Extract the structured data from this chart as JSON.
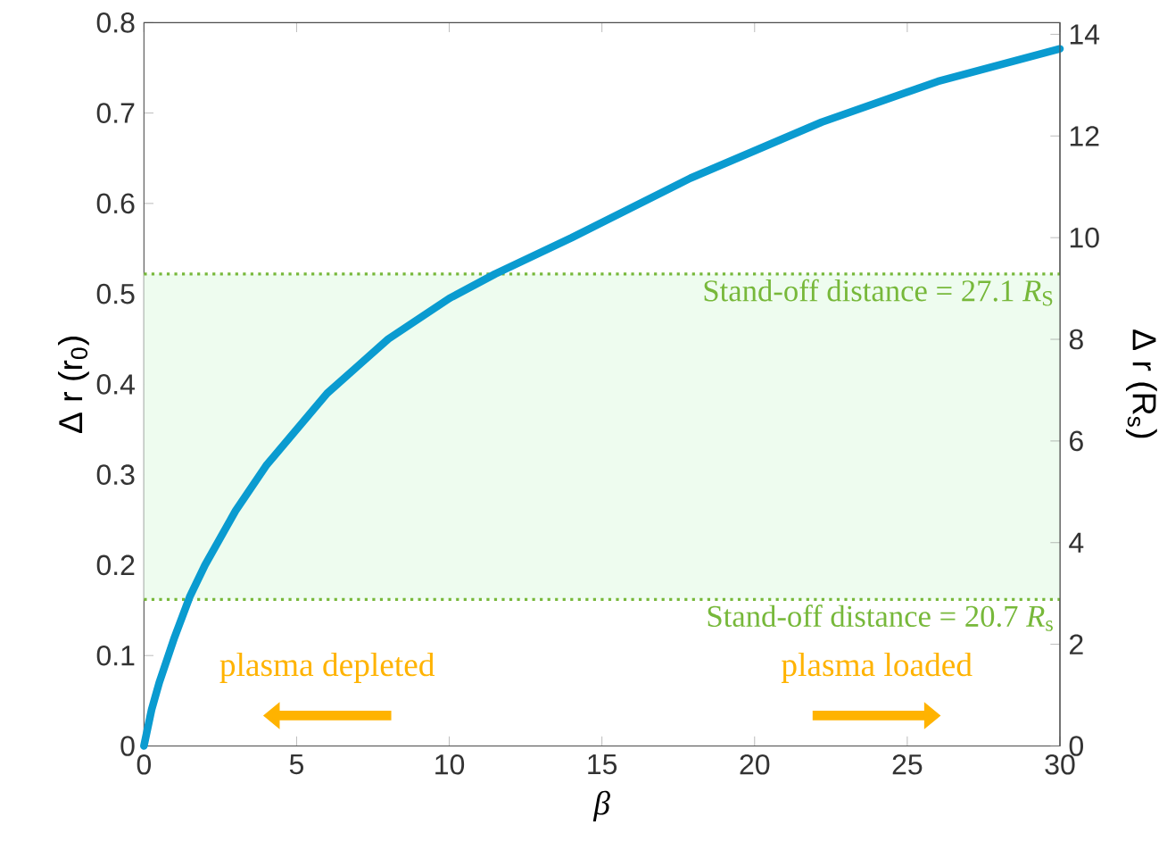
{
  "chart_data": {
    "type": "line",
    "xlabel": "β",
    "ylabel": "Δ r (r$_{0}$)",
    "y2label": "Δ r (R$_{s}$)",
    "xlim": [
      0,
      30
    ],
    "xticks": [
      0,
      5,
      10,
      15,
      20,
      25,
      30
    ],
    "ylim": [
      0,
      0.8
    ],
    "yticks": [
      0,
      0.1,
      0.2,
      0.3,
      0.4,
      0.5,
      0.6,
      0.7,
      0.8
    ],
    "y2lim": [
      0,
      14.23
    ],
    "y2ticks": [
      0,
      2,
      4,
      6,
      8,
      10,
      12,
      14
    ],
    "series": [
      {
        "color": "#0a9bd0",
        "x": [
          0,
          0.25,
          0.5,
          1,
          1.5,
          2,
          3,
          4,
          5,
          6,
          7,
          8,
          10,
          11.5,
          14,
          17.9,
          22.2,
          26,
          30
        ],
        "values": [
          0,
          0.04,
          0.07,
          0.12,
          0.165,
          0.2,
          0.26,
          0.31,
          0.35,
          0.39,
          0.42,
          0.45,
          0.495,
          0.522,
          0.562,
          0.628,
          0.69,
          0.735,
          0.771
        ]
      }
    ],
    "ref_lines": [
      {
        "axis": "y",
        "value": 0.522,
        "color": "#77b83a",
        "line_style": "dotted"
      },
      {
        "axis": "y",
        "value": 0.162,
        "color": "#77b83a",
        "line_style": "dotted"
      }
    ],
    "bands": [
      {
        "axis": "y",
        "from": 0.162,
        "to": 0.522,
        "color": "#eefcef"
      }
    ],
    "annotations": [
      "plasma depleted",
      "plasma loaded",
      {
        "text": "Stand-off distance = 27.1 *R*$_{S}$",
        "x": 30,
        "y": 0.522
      },
      {
        "text": "Stand-off distance = 20.7 *R*$_{s}$",
        "x": 30,
        "y": 0.162
      }
    ],
    "grid": false,
    "marker": "none",
    "line_style": "solid"
  }
}
